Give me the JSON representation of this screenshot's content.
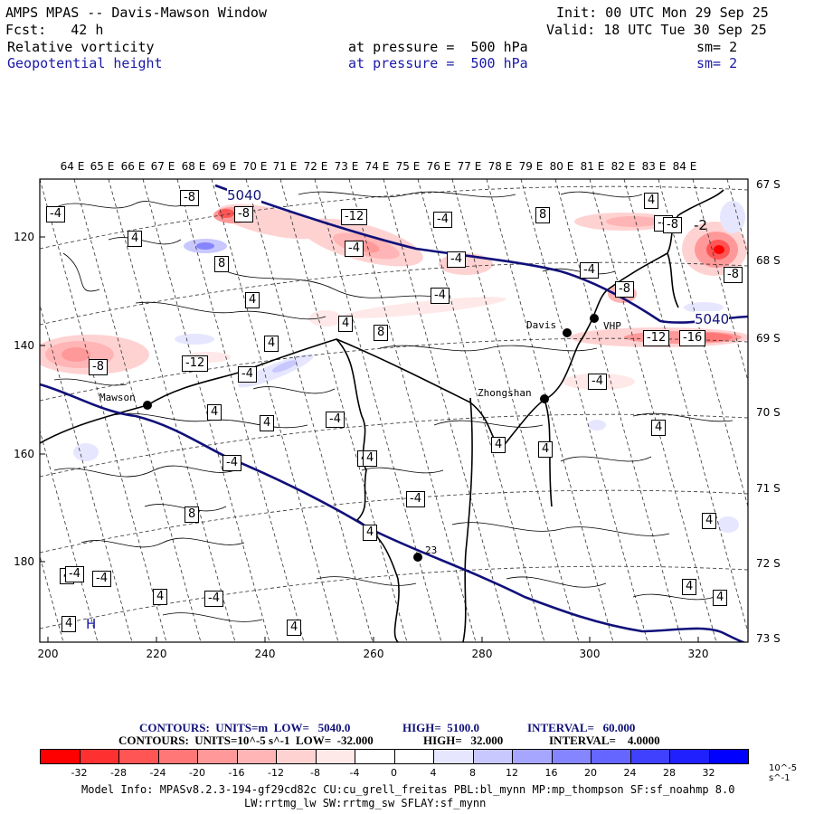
{
  "header": {
    "title": "AMPS MPAS -- Davis-Mawson Window",
    "init": "Init: 00 UTC Mon 29 Sep 25",
    "forecast": "Fcst:   42 h",
    "valid": "Valid: 18 UTC Tue 30 Sep 25",
    "field1": "Relative vorticity",
    "field1_level": "at pressure =  500 hPa",
    "field1_sm": "sm= 2",
    "field2": "Geopotential height",
    "field2_level": "at pressure =  500 hPa",
    "field2_sm": "sm= 2"
  },
  "lon_labels": [
    "64 E",
    "65 E",
    "66 E",
    "67 E",
    "68 E",
    "69 E",
    "70 E",
    "71 E",
    "72 E",
    "73 E",
    "74 E",
    "75 E",
    "76 E",
    "77 E",
    "78 E",
    "79 E",
    "80 E",
    "81 E",
    "82 E",
    "83 E",
    "84 E"
  ],
  "lat_labels": [
    "67 S",
    "68 S",
    "69 S",
    "70 S",
    "71 S",
    "72 S",
    "73 S"
  ],
  "y_ticks": [
    "120",
    "140",
    "160",
    "180"
  ],
  "x_ticks": [
    "200",
    "220",
    "240",
    "260",
    "280",
    "300",
    "320"
  ],
  "stations": [
    "Davis",
    "Zhongshan",
    "Mawson",
    "VHP",
    "23"
  ],
  "height_contour_labels": [
    "5040",
    "5040"
  ],
  "vort_labels": [
    "-4",
    "-8",
    "-8",
    "-12",
    "-4",
    "-4",
    "-4",
    "8",
    "4",
    "-4",
    "-4",
    "4",
    "-8",
    "-4",
    "-8",
    "8",
    "-4",
    "-12",
    "-16",
    "-8",
    "4",
    "-12",
    "-4",
    "4",
    "-4",
    "4",
    "8",
    "4",
    "-4",
    "4",
    "4",
    "4",
    "-4",
    "4",
    "-4",
    "8",
    "4",
    "4",
    "4",
    "-4",
    "4",
    "-4",
    "4",
    "4",
    "4",
    "4",
    "-4",
    "-8",
    "4",
    "4"
  ],
  "extra_labels": [
    "H",
    "-2"
  ],
  "footer": {
    "line1_units": "CONTOURS:  UNITS=m  LOW=   5040.0",
    "line1_high": "HIGH=  5100.0",
    "line1_interval": "INTERVAL=   60.000",
    "line2_units": "CONTOURS:  UNITS=10^-5 s^-1  LOW=  -32.000",
    "line2_high": "HIGH=   32.000",
    "line2_interval": "INTERVAL=    4.0000",
    "colorbar_ticks": [
      "-32",
      "-28",
      "-24",
      "-20",
      "-16",
      "-12",
      "-8",
      "-4",
      "0",
      "4",
      "8",
      "12",
      "16",
      "20",
      "24",
      "28",
      "32"
    ],
    "colorbar_unit": "10^-5 s^-1",
    "model_info": "Model Info: MPASv8.2.3-194-gf29cd82c CU:cu_grell_freitas PBL:bl_mynn MP:mp_thompson SF:sf_noahmp 8.0",
    "model_info2": "LW:rrtmg_lw SW:rrtmg_sw SFLAY:sf_mynn"
  },
  "colors": {
    "navy": "#10107a",
    "title_blue": "#1a1aa8",
    "red_scale": [
      "#ff0000",
      "#ff3030",
      "#ff5555",
      "#ff7777",
      "#ff9999",
      "#ffb5b5",
      "#ffd2d2",
      "#ffe8e8"
    ],
    "blue_scale": [
      "#e6e6ff",
      "#c8c8ff",
      "#a6a6ff",
      "#8585ff",
      "#6565ff",
      "#4040ff",
      "#2020ff",
      "#0000ff"
    ]
  }
}
